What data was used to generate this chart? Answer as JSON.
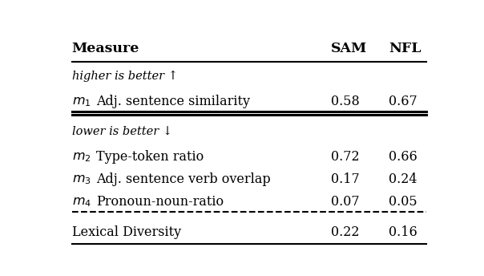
{
  "col_headers": [
    "Measure",
    "SAM",
    "NFL"
  ],
  "section1_label": "higher is better ↑",
  "section1_rows": [
    [
      "m_1",
      "Adj. sentence similarity",
      "0.58",
      "0.67"
    ]
  ],
  "section2_label": "lower is better ↓",
  "section2_rows": [
    [
      "m_2",
      "Type-token ratio",
      "0.72",
      "0.66"
    ],
    [
      "m_3",
      "Adj. sentence verb overlap",
      "0.17",
      "0.24"
    ],
    [
      "m_4",
      "Pronoun-noun-ratio",
      "0.07",
      "0.05"
    ]
  ],
  "footer_row": [
    "Lexical Diversity",
    "0.22",
    "0.16"
  ],
  "bg_color": "#ffffff",
  "text_color": "#000000",
  "font_size": 11.5
}
